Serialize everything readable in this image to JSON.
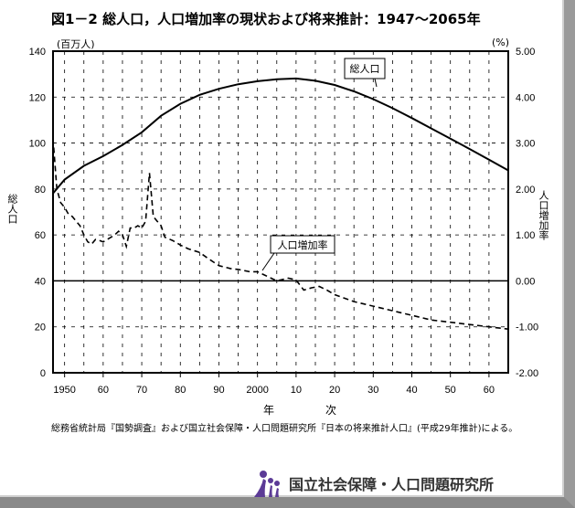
{
  "title": "図1－2 総人口，人口増加率の現状および将来推計：1947～2065年",
  "source": "総務省統計局『国勢調査』および国立社会保障・人口問題研究所『日本の将来推計人口』(平成29年推計)による。",
  "organization": "国立社会保障・人口問題研究所",
  "chart_data": {
    "type": "line",
    "xlabel": "年　次",
    "ylabel_left": "総人口",
    "ylabel_right": "人口増加率",
    "unit_left": "(百万人)",
    "unit_right": "(%)",
    "xlim": [
      1947,
      2065
    ],
    "ylim_left": [
      0,
      140
    ],
    "ylim_right": [
      -2,
      5
    ],
    "x_ticks": [
      1950,
      1960,
      1970,
      1980,
      1990,
      2000,
      2010,
      2020,
      2030,
      2040,
      2050,
      2060
    ],
    "x_tick_labels": [
      "1950",
      "60",
      "70",
      "80",
      "90",
      "2000",
      "10",
      "20",
      "30",
      "40",
      "50",
      "60"
    ],
    "y_left_ticks": [
      "0",
      "20",
      "40",
      "60",
      "80",
      "100",
      "120",
      "140"
    ],
    "y_right_ticks": [
      "-2.00",
      "-1.00",
      "0.00",
      "1.00",
      "2.00",
      "3.00",
      "4.00",
      "5.00"
    ],
    "grid": true,
    "series": [
      {
        "name": "総人口",
        "axis": "left",
        "style": "solid",
        "x": [
          1947,
          1950,
          1955,
          1960,
          1965,
          1970,
          1975,
          1980,
          1985,
          1990,
          1995,
          2000,
          2005,
          2010,
          2015,
          2020,
          2025,
          2030,
          2035,
          2040,
          2045,
          2050,
          2055,
          2060,
          2065
        ],
        "values": [
          78.1,
          84.1,
          90.1,
          94.3,
          99.2,
          104.7,
          111.9,
          117.1,
          121.0,
          123.6,
          125.6,
          126.9,
          127.8,
          128.1,
          127.1,
          125.3,
          122.5,
          119.1,
          115.2,
          110.9,
          106.4,
          101.9,
          97.4,
          92.8,
          88.1
        ]
      },
      {
        "name": "人口増加率",
        "axis": "right",
        "style": "dashed",
        "x": [
          1947,
          1948,
          1949,
          1950,
          1951,
          1952,
          1953,
          1954,
          1955,
          1956,
          1957,
          1958,
          1959,
          1960,
          1961,
          1962,
          1963,
          1964,
          1965,
          1966,
          1967,
          1968,
          1969,
          1970,
          1971,
          1972,
          1973,
          1974,
          1975,
          1976,
          1978,
          1980,
          1982,
          1985,
          1987,
          1990,
          1993,
          1995,
          1998,
          2000,
          2002,
          2005,
          2008,
          2010,
          2012,
          2014,
          2016,
          2018,
          2020,
          2025,
          2030,
          2035,
          2040,
          2045,
          2050,
          2055,
          2060,
          2065
        ],
        "values": [
          3.1,
          2.0,
          1.7,
          1.6,
          1.45,
          1.4,
          1.3,
          1.2,
          1.0,
          0.85,
          0.8,
          0.9,
          0.88,
          0.85,
          0.9,
          0.95,
          1.0,
          1.08,
          1.0,
          0.75,
          1.15,
          1.15,
          1.2,
          1.15,
          1.3,
          2.35,
          1.4,
          1.3,
          1.2,
          0.95,
          0.88,
          0.78,
          0.7,
          0.62,
          0.5,
          0.33,
          0.27,
          0.25,
          0.2,
          0.2,
          0.12,
          0.0,
          0.06,
          0.02,
          -0.2,
          -0.15,
          -0.12,
          -0.2,
          -0.3,
          -0.45,
          -0.55,
          -0.65,
          -0.75,
          -0.85,
          -0.9,
          -0.95,
          -1.0,
          -1.05
        ]
      }
    ],
    "annotations": [
      "総人口",
      "人口増加率"
    ]
  }
}
